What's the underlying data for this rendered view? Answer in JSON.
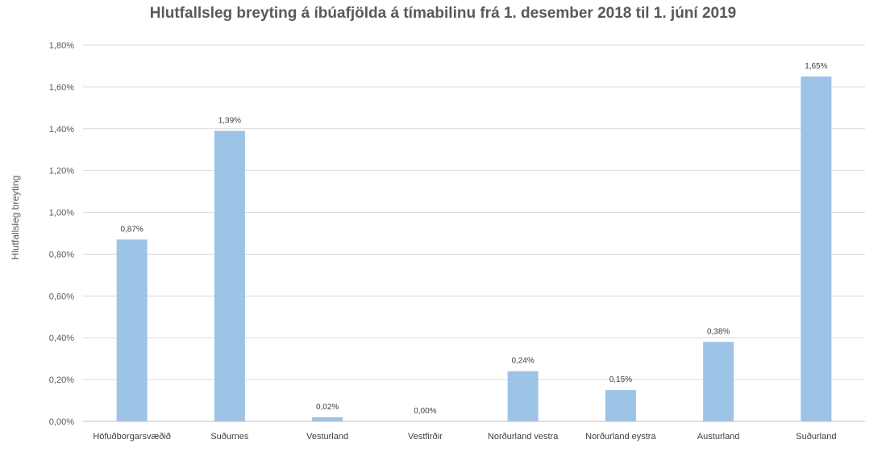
{
  "chart_data": {
    "type": "bar",
    "title": "Hlutfallsleg breyting á íbúafjölda á tímabilinu frá 1. desember 2018 til 1. júní 2019",
    "ylabel": "Hlutfallsleg breyting",
    "xlabel": "",
    "categories": [
      "Höfuðborgarsvæðið",
      "Suðurnes",
      "Vesturland",
      "Vestfirðir",
      "Norðurland vestra",
      "Norðurland eystra",
      "Austurland",
      "Suðurland"
    ],
    "values": [
      0.87,
      1.39,
      0.02,
      0.0,
      0.24,
      0.15,
      0.38,
      1.65
    ],
    "data_labels": [
      "0,87%",
      "1,39%",
      "0,02%",
      "0,00%",
      "0,24%",
      "0,15%",
      "0,38%",
      "1,65%"
    ],
    "ylim": [
      0,
      1.8
    ],
    "yticks": [
      0,
      0.2,
      0.4,
      0.6,
      0.8,
      1.0,
      1.2,
      1.4,
      1.6,
      1.8
    ],
    "ytick_labels": [
      "0,00%",
      "0,20%",
      "0,40%",
      "0,60%",
      "0,80%",
      "1,00%",
      "1,20%",
      "1,40%",
      "1,60%",
      "1,80%"
    ],
    "grid": true,
    "legend": "none",
    "bar_color": "#9dc3e6"
  }
}
